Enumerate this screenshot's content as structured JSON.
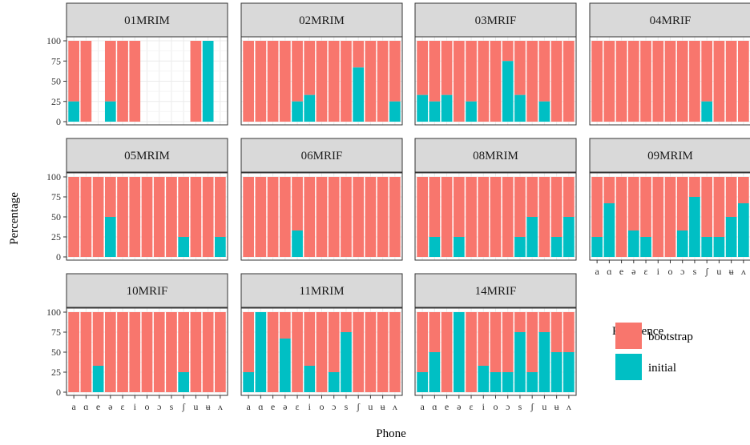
{
  "chart_data": {
    "type": "bar",
    "stacked": true,
    "xlabel": "Phone",
    "ylabel": "Percentage",
    "ylim": [
      0,
      100
    ],
    "yticks": [
      "0",
      "25",
      "50",
      "75",
      "100"
    ],
    "categories": [
      "a",
      "ɑ",
      "e",
      "ə",
      "ɛ",
      "i",
      "o",
      "ɔ",
      "s",
      "ʃ",
      "u",
      "ʉ",
      "ʌ"
    ],
    "legend": {
      "title": "Preference",
      "placement": "bottom-right",
      "entries": [
        {
          "name": "bootstrap",
          "color": "#F8766D"
        },
        {
          "name": "initial",
          "color": "#00BFC4"
        }
      ]
    },
    "panels": [
      {
        "name": "01MRIM",
        "initial": [
          25,
          0,
          null,
          25,
          0,
          0,
          null,
          null,
          null,
          null,
          0,
          100,
          null
        ]
      },
      {
        "name": "02MRIM",
        "initial": [
          0,
          0,
          0,
          0,
          25,
          33,
          0,
          0,
          0,
          67,
          0,
          0,
          25
        ]
      },
      {
        "name": "03MRIF",
        "initial": [
          33,
          25,
          33,
          0,
          25,
          0,
          0,
          75,
          33,
          0,
          25,
          0,
          0
        ]
      },
      {
        "name": "04MRIF",
        "initial": [
          0,
          0,
          0,
          0,
          0,
          0,
          0,
          0,
          0,
          25,
          0,
          0,
          0
        ]
      },
      {
        "name": "05MRIM",
        "initial": [
          0,
          0,
          0,
          50,
          0,
          0,
          0,
          0,
          0,
          25,
          0,
          0,
          25
        ]
      },
      {
        "name": "06MRIF",
        "initial": [
          0,
          0,
          0,
          0,
          33,
          0,
          0,
          0,
          0,
          0,
          0,
          0,
          0
        ]
      },
      {
        "name": "08MRIM",
        "initial": [
          0,
          25,
          0,
          25,
          0,
          0,
          0,
          0,
          25,
          50,
          0,
          25,
          50
        ]
      },
      {
        "name": "09MRIM",
        "initial": [
          25,
          67,
          0,
          33,
          25,
          0,
          0,
          33,
          75,
          25,
          25,
          50,
          67
        ]
      },
      {
        "name": "10MRIF",
        "initial": [
          0,
          0,
          33,
          0,
          0,
          0,
          0,
          0,
          0,
          25,
          0,
          0,
          0
        ]
      },
      {
        "name": "11MRIM",
        "initial": [
          25,
          100,
          0,
          67,
          0,
          33,
          0,
          25,
          75,
          0,
          0,
          0,
          0
        ]
      },
      {
        "name": "14MRIF",
        "initial": [
          25,
          50,
          0,
          100,
          0,
          33,
          25,
          25,
          75,
          25,
          75,
          50,
          50
        ]
      }
    ]
  }
}
